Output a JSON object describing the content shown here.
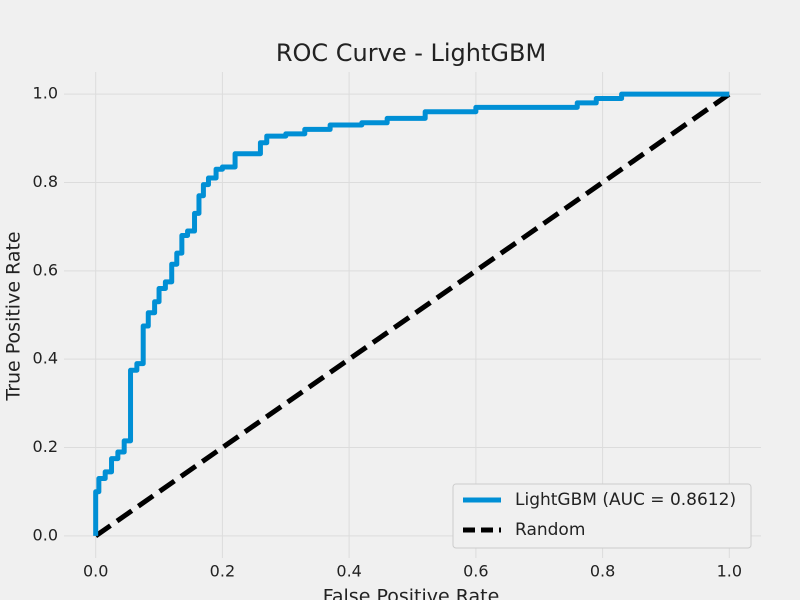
{
  "chart_data": {
    "type": "line",
    "title": "ROC Curve - LightGBM",
    "x_label": "False Positive Rate",
    "y_label": "True Positive Rate",
    "xlim": [
      -0.05,
      1.05
    ],
    "ylim": [
      -0.05,
      1.05
    ],
    "xticks": [
      {
        "value": 0,
        "label": "0.0"
      },
      0.2,
      0.4,
      0.6,
      0.8,
      {
        "value": 1,
        "label": "1.0"
      }
    ],
    "yticks": [
      {
        "value": 0,
        "label": "0.0"
      },
      0.2,
      0.4,
      0.6,
      0.8,
      {
        "value": 1,
        "label": "1.0"
      }
    ],
    "grid": true,
    "legend": "lower right",
    "series": [
      {
        "name": "LightGBM (AUC = 0.8612)",
        "color": "#008fd5",
        "style": "solid",
        "x": [
          0,
          0,
          0.005,
          0.005,
          0.015,
          0.015,
          0.025,
          0.025,
          0.035,
          0.035,
          0.045,
          0.045,
          0.055,
          0.055,
          0.065,
          0.065,
          0.075,
          0.075,
          0.083,
          0.083,
          0.093,
          0.093,
          0.1,
          0.1,
          0.11,
          0.11,
          0.12,
          0.12,
          0.128,
          0.128,
          0.136,
          0.136,
          0.145,
          0.145,
          0.156,
          0.156,
          0.163,
          0.163,
          0.17,
          0.17,
          0.178,
          0.178,
          0.19,
          0.19,
          0.2,
          0.2,
          0.22,
          0.22,
          0.26,
          0.26,
          0.27,
          0.27,
          0.3,
          0.3,
          0.33,
          0.33,
          0.37,
          0.37,
          0.42,
          0.42,
          0.46,
          0.46,
          0.52,
          0.52,
          0.6,
          0.6,
          0.76,
          0.76,
          0.79,
          0.79,
          0.83,
          0.83,
          1.0
        ],
        "values": [
          0,
          0.1,
          0.1,
          0.13,
          0.13,
          0.145,
          0.145,
          0.175,
          0.175,
          0.19,
          0.19,
          0.215,
          0.215,
          0.375,
          0.375,
          0.39,
          0.39,
          0.475,
          0.475,
          0.505,
          0.505,
          0.53,
          0.53,
          0.56,
          0.56,
          0.575,
          0.575,
          0.615,
          0.615,
          0.64,
          0.64,
          0.68,
          0.68,
          0.69,
          0.69,
          0.73,
          0.73,
          0.77,
          0.77,
          0.795,
          0.795,
          0.81,
          0.81,
          0.83,
          0.83,
          0.835,
          0.835,
          0.865,
          0.865,
          0.89,
          0.89,
          0.905,
          0.905,
          0.91,
          0.91,
          0.92,
          0.92,
          0.93,
          0.93,
          0.935,
          0.935,
          0.945,
          0.945,
          0.96,
          0.96,
          0.97,
          0.97,
          0.98,
          0.98,
          0.99,
          0.99,
          1.0,
          1.0
        ]
      },
      {
        "name": "Random",
        "color": "#000000",
        "style": "dashed",
        "x": [
          0,
          1
        ],
        "values": [
          0,
          1
        ]
      }
    ]
  }
}
